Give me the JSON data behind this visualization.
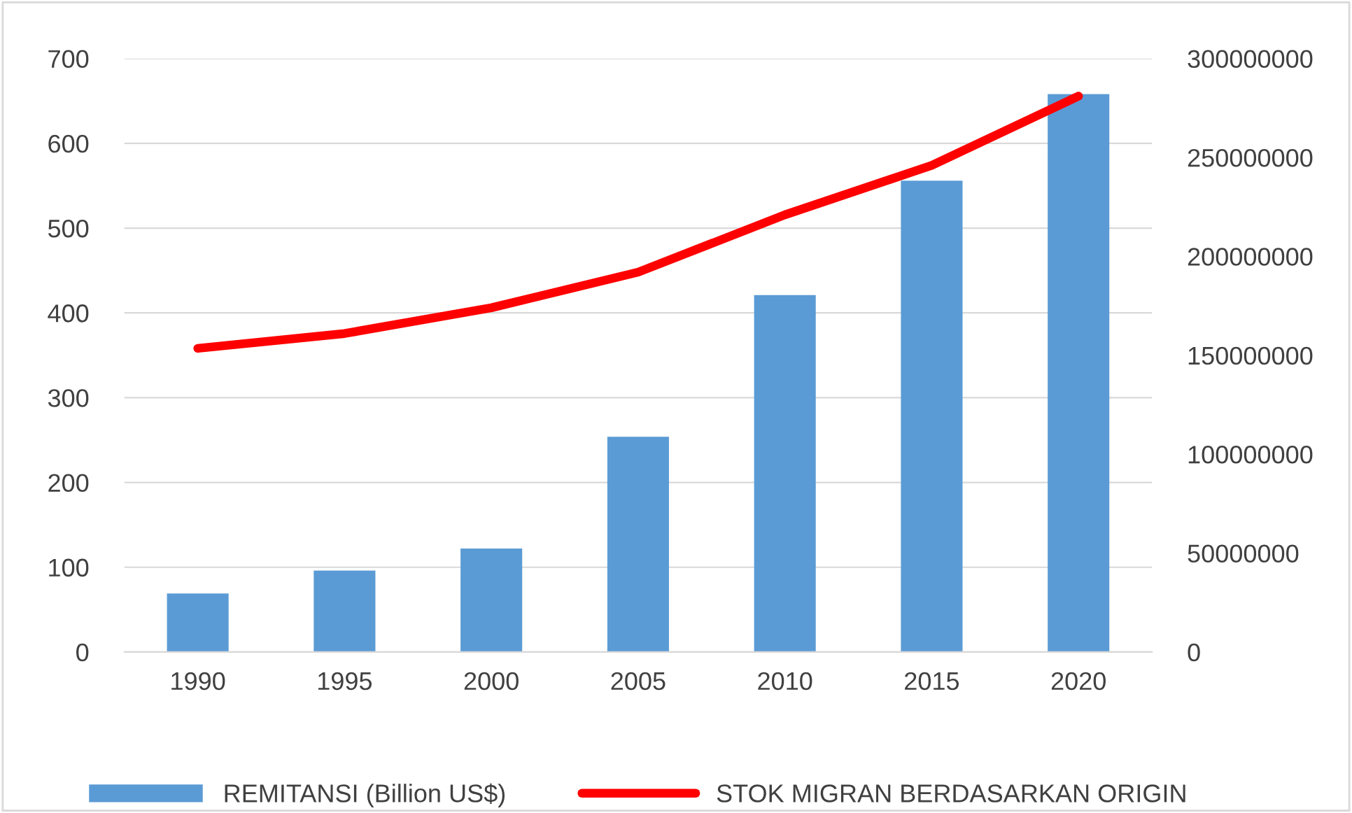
{
  "chart_data": {
    "type": "bar",
    "categories": [
      "1990",
      "1995",
      "2000",
      "2005",
      "2010",
      "2015",
      "2020"
    ],
    "series": [
      {
        "name": "REMITANSI (Billion US$)",
        "color": "#5b9bd5",
        "values": [
          69,
          96,
          122,
          254,
          421,
          556,
          658
        ]
      },
      {
        "name": "STOK MIGRAN BERDASARKAN ORIGIN",
        "type": "line",
        "axis": "y2",
        "color": "#ff0000",
        "values": [
          153500000,
          161000000,
          174000000,
          192000000,
          221000000,
          246000000,
          281000000
        ]
      }
    ],
    "ylim": [
      0,
      700
    ],
    "yticks": [
      0,
      100,
      200,
      300,
      400,
      500,
      600,
      700
    ],
    "y2lim": [
      0,
      300000000
    ],
    "y2ticks": [
      0,
      50000000,
      100000000,
      150000000,
      200000000,
      250000000,
      300000000
    ],
    "grid": "y",
    "legend": "bottom",
    "marker": "none",
    "line_style": "solid"
  }
}
